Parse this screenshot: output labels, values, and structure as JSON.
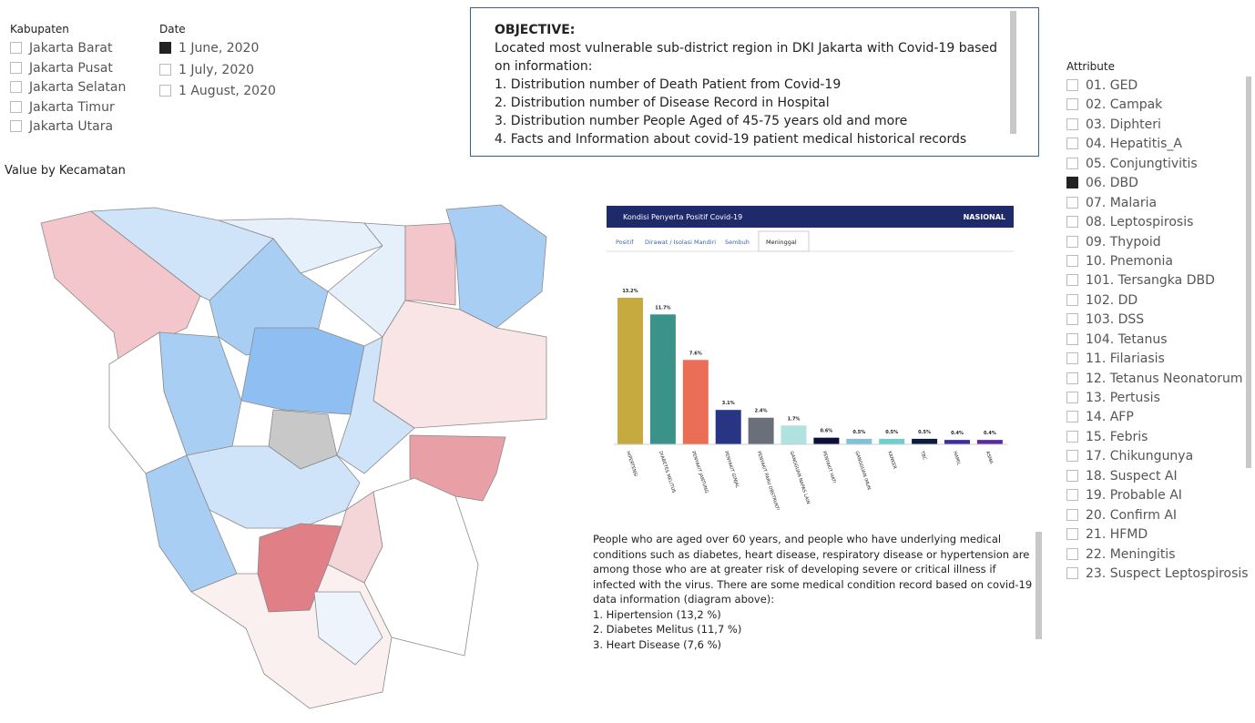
{
  "kabupaten": {
    "title": "Kabupaten",
    "items": [
      {
        "label": "Jakarta Barat",
        "checked": false
      },
      {
        "label": "Jakarta Pusat",
        "checked": false
      },
      {
        "label": "Jakarta Selatan",
        "checked": false
      },
      {
        "label": "Jakarta Timur",
        "checked": false
      },
      {
        "label": "Jakarta Utara",
        "checked": false
      }
    ]
  },
  "date": {
    "title": "Date",
    "items": [
      {
        "label": "1 June, 2020",
        "checked": true
      },
      {
        "label": "1 July, 2020",
        "checked": false
      },
      {
        "label": "1 August, 2020",
        "checked": false
      }
    ]
  },
  "objective": {
    "title": "OBJECTIVE:",
    "text": "Located most vulnerable sub-district region in DKI Jakarta with Covid-19 based on information:",
    "items": [
      "1. Distribution number of Death Patient from Covid-19",
      "2. Distribution number of Disease Record in Hospital",
      "3. Distribution number People Aged of 45-75 years old and more",
      "4. Facts and Information about covid-19 patient medical historical records"
    ]
  },
  "map": {
    "title": "Value by Kecamatan"
  },
  "panel": {
    "title": "Kondisi Penyerta Positif Covid-19",
    "region": "NASIONAL",
    "tabs": [
      "Positif",
      "Dirawat / Isolasi Mandiri",
      "Sembuh",
      "Meninggal"
    ]
  },
  "chart_data": {
    "type": "bar",
    "categories": [
      "HIPERTENSI",
      "DIABETES MELITUS",
      "PENYAKIT JANTUNG",
      "PENYAKIT GINJAL",
      "PENYAKIT PARU OBSTRUKTIF KRONIS",
      "GANGGUAN NAPAS LAIN",
      "PENYAKIT HATI",
      "GANGGUAN IMUN",
      "KANKER",
      "TBC",
      "HAMIL",
      "ASMA"
    ],
    "values": [
      13.2,
      11.7,
      7.6,
      3.1,
      2.4,
      1.7,
      0.6,
      0.5,
      0.5,
      0.5,
      0.4,
      0.4
    ],
    "value_labels": [
      "13.2%",
      "11.7%",
      "7.6%",
      "3.1%",
      "2.4%",
      "1.7%",
      "0.6%",
      "0.5%",
      "0.5%",
      "0.5%",
      "0.4%",
      "0.4%"
    ],
    "colors": [
      "#c6a93f",
      "#3a9288",
      "#ea6d55",
      "#283584",
      "#6b6f7a",
      "#b0e3e0",
      "#0d1038",
      "#7fc1d9",
      "#6fcfcf",
      "#0f1b3d",
      "#3a2ea0",
      "#5a2aa0"
    ]
  },
  "description": {
    "text": "People who are aged over 60 years, and people who have underlying medical conditions such as diabetes, heart disease, respiratory disease or hypertension are among those who are at greater risk of developing severe or critical illness if infected with the virus. There are some medical condition record based on covid-19 data information (diagram above):",
    "items": [
      "1. Hipertension (13,2 %)",
      "2. Diabetes Melitus (11,7 %)",
      "3. Heart Disease (7,6 %)"
    ]
  },
  "attribute": {
    "title": "Attribute",
    "items": [
      {
        "label": "01. GED",
        "checked": false
      },
      {
        "label": "02. Campak",
        "checked": false
      },
      {
        "label": "03. Diphteri",
        "checked": false
      },
      {
        "label": "04. Hepatitis_A",
        "checked": false
      },
      {
        "label": "05. Conjungtivitis",
        "checked": false
      },
      {
        "label": "06. DBD",
        "checked": true
      },
      {
        "label": "07. Malaria",
        "checked": false
      },
      {
        "label": "08. Leptospirosis",
        "checked": false
      },
      {
        "label": "09. Thypoid",
        "checked": false
      },
      {
        "label": "10. Pnemonia",
        "checked": false
      },
      {
        "label": "101. Tersangka DBD",
        "checked": false
      },
      {
        "label": "102. DD",
        "checked": false
      },
      {
        "label": "103. DSS",
        "checked": false
      },
      {
        "label": "104. Tetanus",
        "checked": false
      },
      {
        "label": "11. Filariasis",
        "checked": false
      },
      {
        "label": "12. Tetanus Neonatorum",
        "checked": false
      },
      {
        "label": "13. Pertusis",
        "checked": false
      },
      {
        "label": "14. AFP",
        "checked": false
      },
      {
        "label": "15. Febris",
        "checked": false
      },
      {
        "label": "17. Chikungunya",
        "checked": false
      },
      {
        "label": "18. Suspect AI",
        "checked": false
      },
      {
        "label": "19. Probable AI",
        "checked": false
      },
      {
        "label": "20. Confirm AI",
        "checked": false
      },
      {
        "label": "21. HFMD",
        "checked": false
      },
      {
        "label": "22. Meningitis",
        "checked": false
      },
      {
        "label": "23. Suspect Leptospirosis",
        "checked": false
      }
    ]
  }
}
